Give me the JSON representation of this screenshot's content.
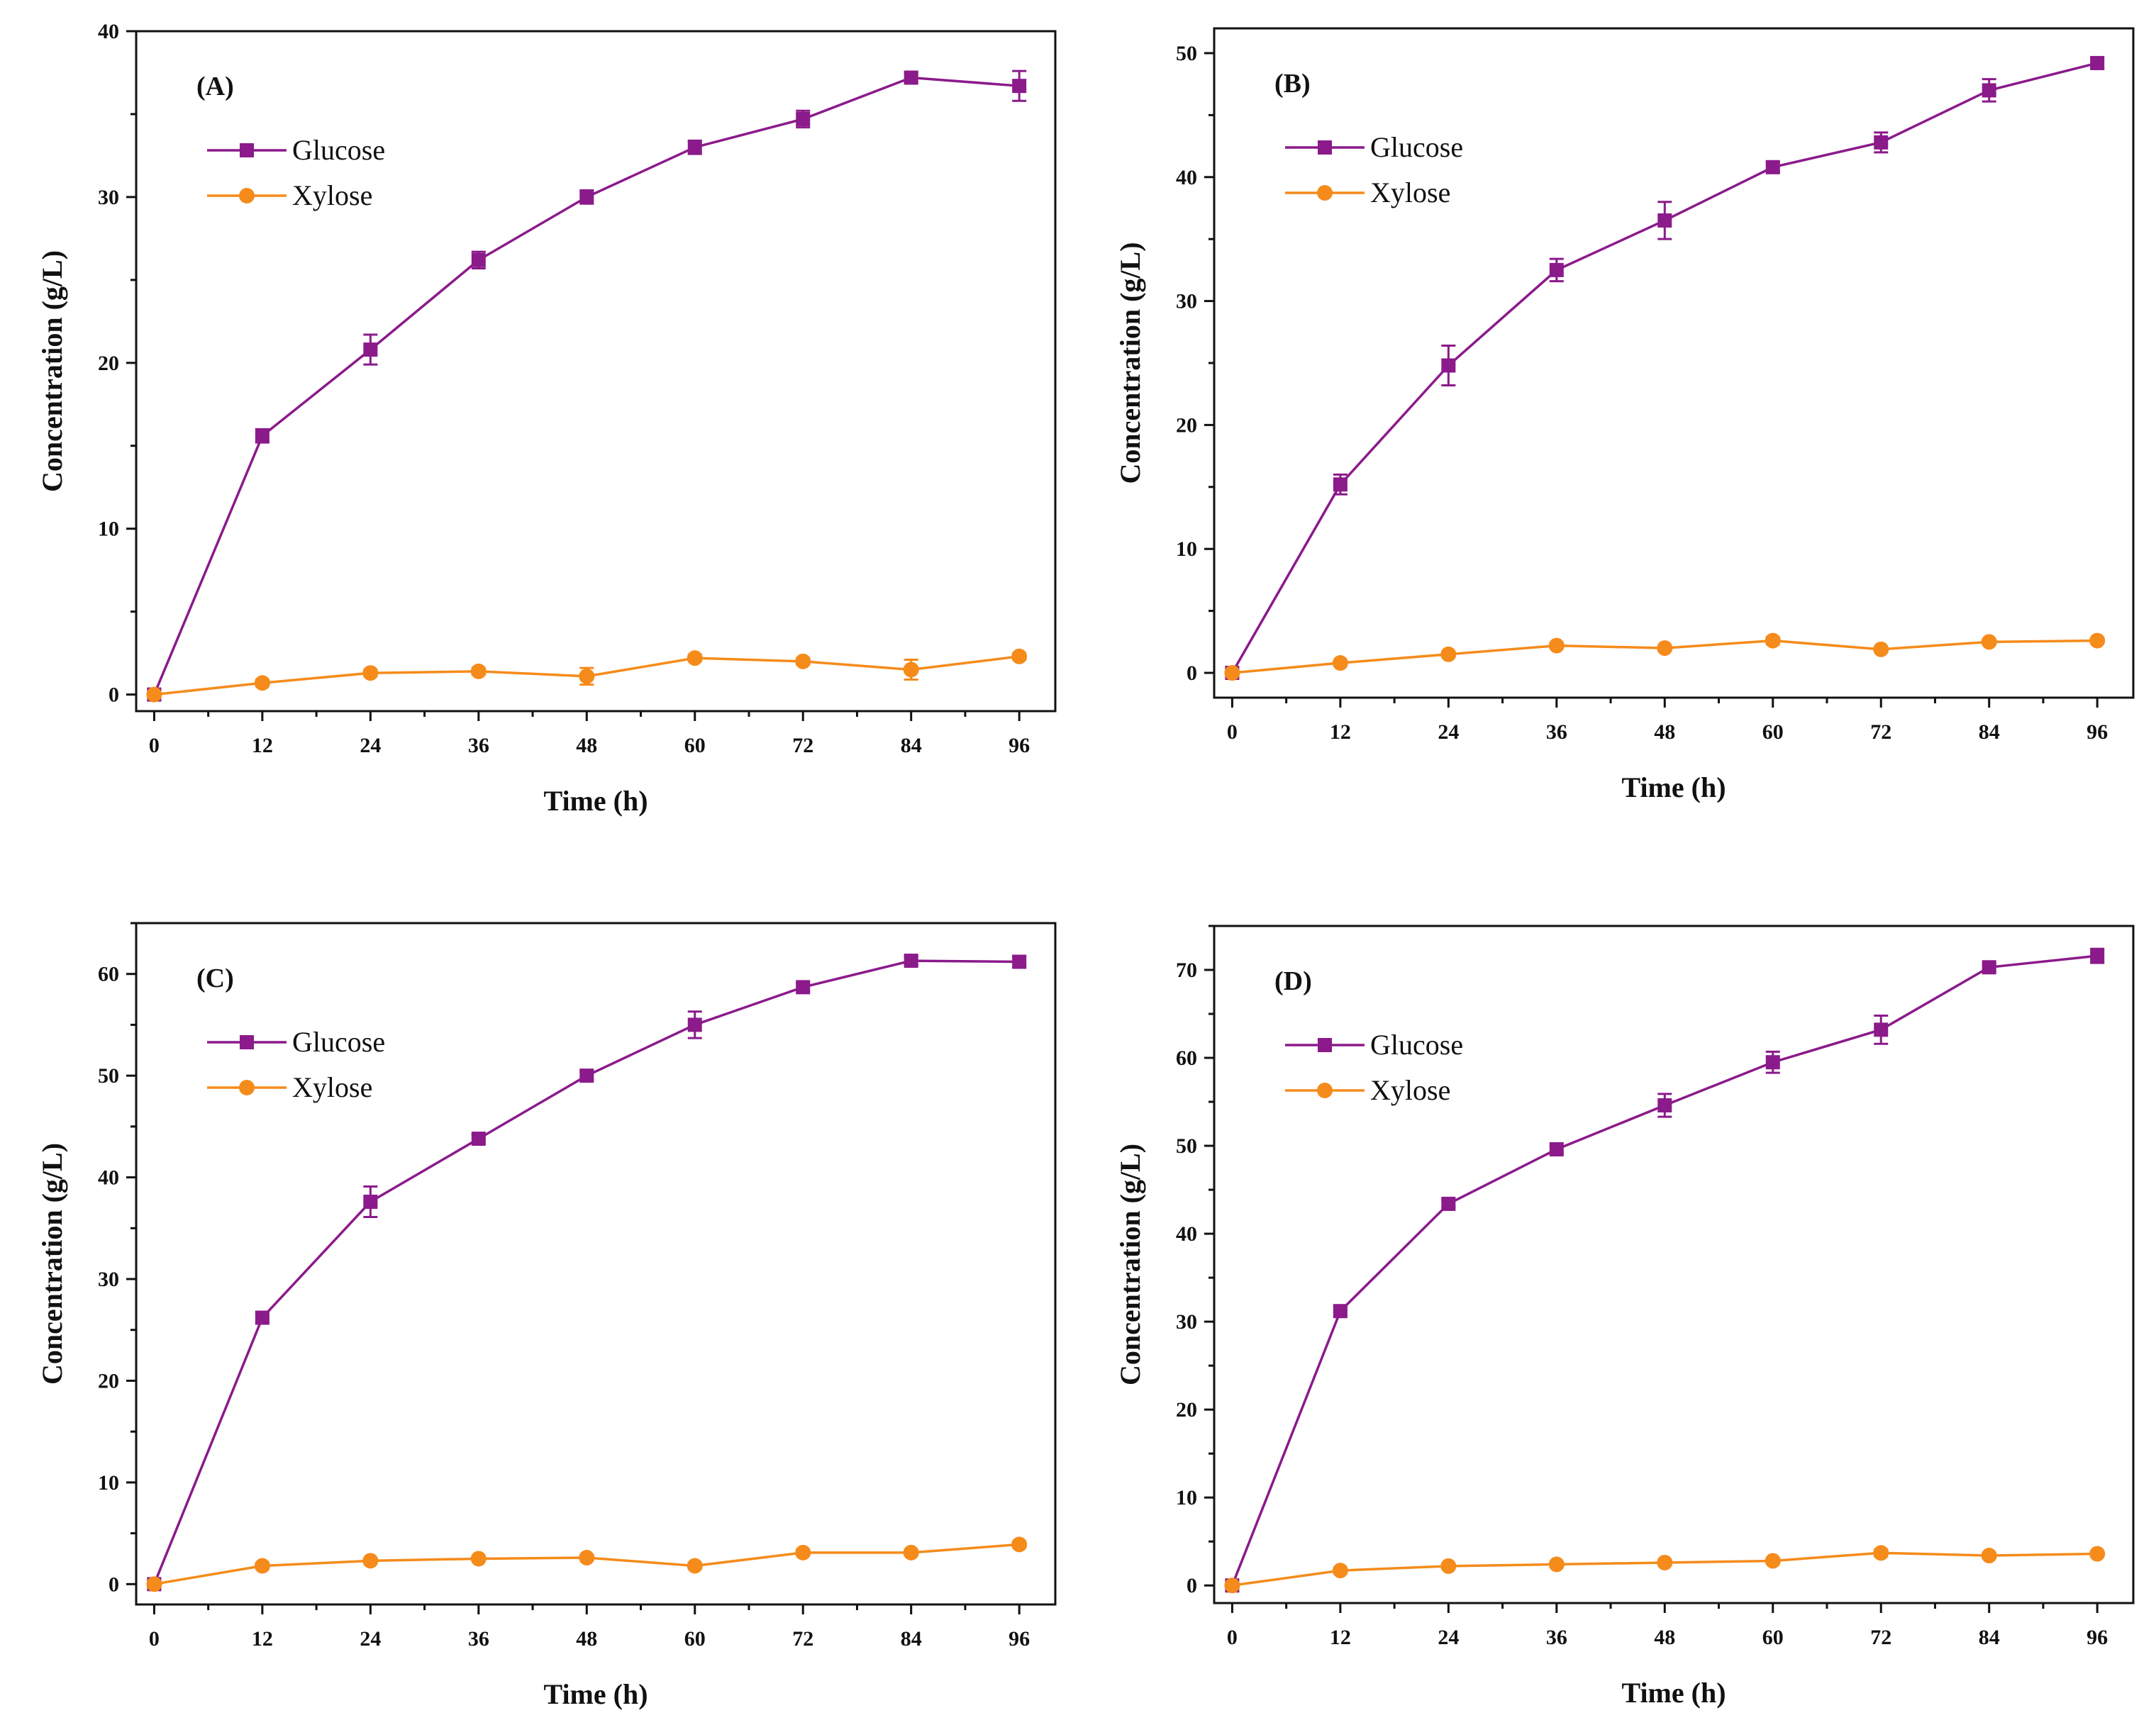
{
  "series_colors": {
    "Glucose": "#8b1a8b",
    "Xylose": "#f58b1b"
  },
  "chart_data": [
    {
      "panel_label": "(A)",
      "type": "line",
      "xlabel": "Time (h)",
      "ylabel": "Concentration (g/L)",
      "x": [
        0,
        12,
        24,
        36,
        48,
        60,
        72,
        84,
        96
      ],
      "xticks": [
        0,
        12,
        24,
        36,
        48,
        60,
        72,
        84,
        96
      ],
      "xlim": [
        -2,
        100
      ],
      "ylim": [
        -1,
        40
      ],
      "yticks": [
        0,
        10,
        20,
        30,
        40
      ],
      "legend_position": "top-left",
      "series": [
        {
          "name": "Glucose",
          "marker": "square",
          "values": [
            0,
            15.6,
            20.8,
            26.2,
            30.0,
            33.0,
            34.7,
            37.2,
            36.7
          ],
          "errors": [
            0.3,
            0.4,
            0.9,
            0.5,
            0.4,
            0.4,
            0.5,
            0.3,
            0.9
          ]
        },
        {
          "name": "Xylose",
          "marker": "circle",
          "values": [
            0,
            0.7,
            1.3,
            1.4,
            1.1,
            2.2,
            2.0,
            1.5,
            2.3
          ],
          "errors": [
            0.1,
            0.2,
            0.2,
            0.2,
            0.5,
            0.2,
            0.2,
            0.6,
            0.2
          ]
        }
      ]
    },
    {
      "panel_label": "(B)",
      "type": "line",
      "xlabel": "Time (h)",
      "ylabel": "Concentration (g/L)",
      "x": [
        0,
        12,
        24,
        36,
        48,
        60,
        72,
        84,
        96
      ],
      "xticks": [
        0,
        12,
        24,
        36,
        48,
        60,
        72,
        84,
        96
      ],
      "xlim": [
        -2,
        100
      ],
      "ylim": [
        -2,
        52
      ],
      "yticks": [
        0,
        10,
        20,
        30,
        40,
        50
      ],
      "legend_position": "top-left",
      "series": [
        {
          "name": "Glucose",
          "marker": "square",
          "values": [
            0,
            15.2,
            24.8,
            32.5,
            36.5,
            40.8,
            42.8,
            47.0,
            49.2
          ],
          "errors": [
            0.3,
            0.8,
            1.6,
            0.9,
            1.5,
            0.4,
            0.8,
            0.9,
            0.4
          ]
        },
        {
          "name": "Xylose",
          "marker": "circle",
          "values": [
            0,
            0.8,
            1.5,
            2.2,
            2.0,
            2.6,
            1.9,
            2.5,
            2.6
          ],
          "errors": [
            0.1,
            0.2,
            0.2,
            0.2,
            0.2,
            0.3,
            0.2,
            0.2,
            0.2
          ]
        }
      ]
    },
    {
      "panel_label": "(C)",
      "type": "line",
      "xlabel": "Time (h)",
      "ylabel": "Concentration (g/L)",
      "x": [
        0,
        12,
        24,
        36,
        48,
        60,
        72,
        84,
        96
      ],
      "xticks": [
        0,
        12,
        24,
        36,
        48,
        60,
        72,
        84,
        96
      ],
      "xlim": [
        -2,
        100
      ],
      "ylim": [
        -2,
        65
      ],
      "yticks": [
        0,
        10,
        20,
        30,
        40,
        50,
        60
      ],
      "legend_position": "top-left",
      "series": [
        {
          "name": "Glucose",
          "marker": "square",
          "values": [
            0,
            26.2,
            37.6,
            43.8,
            50.0,
            55.0,
            58.7,
            61.3,
            61.2
          ],
          "errors": [
            0.3,
            0.5,
            1.5,
            0.4,
            0.4,
            1.3,
            0.4,
            0.4,
            0.5
          ]
        },
        {
          "name": "Xylose",
          "marker": "circle",
          "values": [
            0,
            1.8,
            2.3,
            2.5,
            2.6,
            1.8,
            3.1,
            3.1,
            3.9
          ],
          "errors": [
            0.1,
            0.3,
            0.2,
            0.2,
            0.2,
            0.3,
            0.3,
            0.3,
            0.3
          ]
        }
      ]
    },
    {
      "panel_label": "(D)",
      "type": "line",
      "xlabel": "Time (h)",
      "ylabel": "Concentration (g/L)",
      "x": [
        0,
        12,
        24,
        36,
        48,
        60,
        72,
        84,
        96
      ],
      "xticks": [
        0,
        12,
        24,
        36,
        48,
        60,
        72,
        84,
        96
      ],
      "xlim": [
        -2,
        100
      ],
      "ylim": [
        -2,
        75
      ],
      "yticks": [
        0,
        10,
        20,
        30,
        40,
        50,
        60,
        70
      ],
      "legend_position": "top-left",
      "series": [
        {
          "name": "Glucose",
          "marker": "square",
          "values": [
            0,
            31.2,
            43.4,
            49.6,
            54.6,
            59.5,
            63.2,
            70.3,
            71.6
          ],
          "errors": [
            0.3,
            0.5,
            0.4,
            0.4,
            1.3,
            1.2,
            1.6,
            0.4,
            0.8
          ]
        },
        {
          "name": "Xylose",
          "marker": "circle",
          "values": [
            0,
            1.7,
            2.2,
            2.4,
            2.6,
            2.8,
            3.7,
            3.4,
            3.6
          ],
          "errors": [
            0.1,
            0.3,
            0.3,
            0.3,
            0.3,
            0.3,
            0.4,
            0.3,
            0.3
          ]
        }
      ]
    }
  ]
}
